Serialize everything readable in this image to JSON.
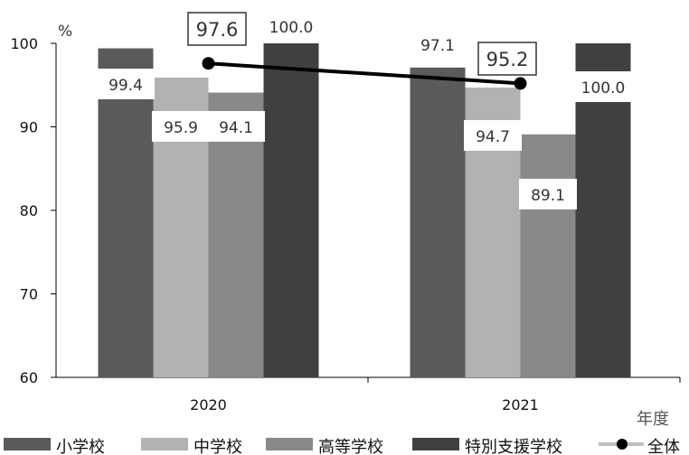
{
  "chart_data": {
    "type": "bar",
    "categories": [
      "2020",
      "2021"
    ],
    "series": [
      {
        "name": "小学校",
        "values": [
          99.4,
          97.1
        ],
        "color": "#5a5a5a"
      },
      {
        "name": "中学校",
        "values": [
          95.9,
          94.7
        ],
        "color": "#b2b2b2"
      },
      {
        "name": "高等学校",
        "values": [
          94.1,
          89.1
        ],
        "color": "#898989"
      },
      {
        "name": "特別支援学校",
        "values": [
          100.0,
          100.0
        ],
        "color": "#404040"
      }
    ],
    "line_series": {
      "name": "全体",
      "values": [
        97.6,
        95.2
      ],
      "color": "#000000"
    },
    "data_labels": {
      "bars": [
        [
          "99.4",
          "95.9",
          "94.1",
          "100.0"
        ],
        [
          "97.1",
          "94.7",
          "89.1",
          "100.0"
        ]
      ],
      "line": [
        "97.6",
        "95.2"
      ]
    },
    "y_unit": "%",
    "x_unit": "年度",
    "ylim": [
      60,
      100
    ],
    "yticks": [
      60,
      70,
      80,
      90,
      100
    ],
    "grid": false,
    "legend_position": "bottom"
  }
}
